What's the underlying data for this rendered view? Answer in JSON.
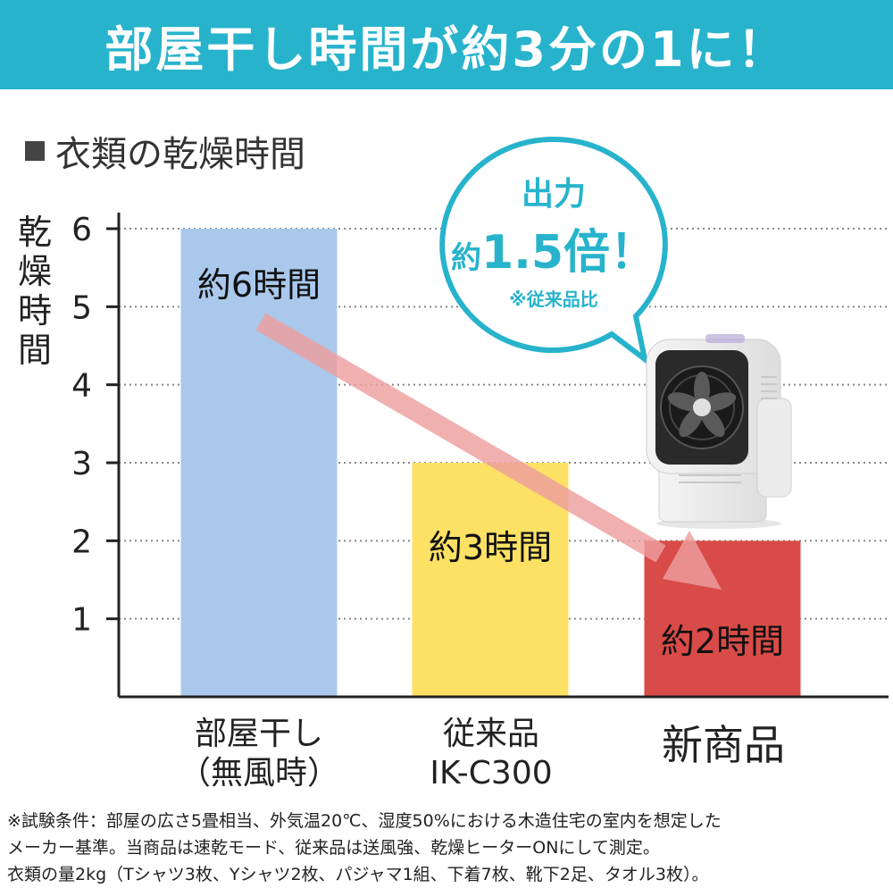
{
  "banner": {
    "title": "部屋干し時間が約3分の1に！",
    "bg_color": "#27b3cc"
  },
  "section_title": "衣類の乾燥時間",
  "y_axis_label_chars": [
    "乾",
    "燥",
    "時",
    "間"
  ],
  "bubble": {
    "line1": "出力",
    "prefix": "約",
    "number": "1.5倍！",
    "note": "※従来品比",
    "color": "#27b3cc"
  },
  "categories": [
    {
      "line1": "部屋干し",
      "line2": "（無風時）"
    },
    {
      "line1": "従来品",
      "line2": "IK-C300"
    },
    {
      "line1": "新商品",
      "line2": ""
    }
  ],
  "footnote": [
    "※試験条件：部屋の広さ5畳相当、外気温20℃、湿度50%における木造住宅の室内を想定した",
    "メーカー基準。当商品は速乾モード、従来品は送風強、乾燥ヒーターONにして測定。",
    "衣類の量2kg（Tシャツ3枚、Yシャツ2枚、パジャマ1組、下着7枚、靴下2足、タオル3枚）。"
  ],
  "device_icon": "fan-heater-dryer-icon",
  "chart_data": {
    "type": "bar",
    "categories": [
      "部屋干し（無風時）",
      "従来品 IK-C300",
      "新商品"
    ],
    "values": [
      6,
      3,
      2
    ],
    "data_labels": [
      "約6時間",
      "約3時間",
      "約2時間"
    ],
    "bar_colors": [
      "#a9c8ec",
      "#fde164",
      "#d94b48"
    ],
    "ylabel": "乾燥時間",
    "ylim": [
      0,
      6
    ],
    "yticks": [
      1,
      2,
      3,
      4,
      5,
      6
    ],
    "grid": true,
    "grid_style": "dotted",
    "annotation": "downward arrow from first bar to third bar",
    "arrow_color": "#ee9f9f"
  }
}
